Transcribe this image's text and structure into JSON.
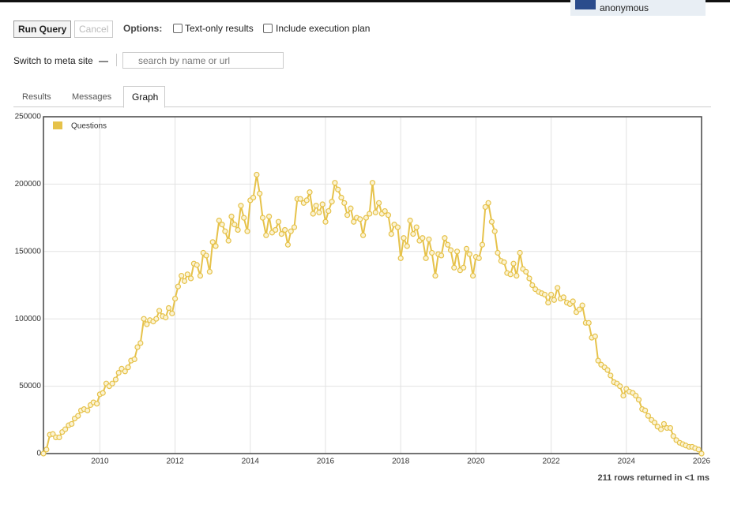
{
  "page": {
    "user": "anonymous",
    "run_button": "Run Query",
    "cancel_button": "Cancel",
    "options_label": "Options:",
    "option_text_only": "Text-only results",
    "option_exec_plan": "Include execution plan",
    "switch_meta": "Switch to meta site",
    "search_placeholder": "search by name or url",
    "tabs": [
      "Results",
      "Messages",
      "Graph"
    ],
    "status": "211 rows returned in <1 ms"
  },
  "chart_data": {
    "type": "line",
    "color": "#e6c24a",
    "grid": true,
    "legend": "top-left",
    "xlim": [
      2008.5,
      2026
    ],
    "xticks": [
      2010,
      2012,
      2014,
      2016,
      2018,
      2020,
      2022,
      2024,
      2026
    ],
    "ylim": [
      0,
      250000
    ],
    "yticks": [
      0,
      50000,
      100000,
      150000,
      200000,
      250000
    ],
    "x": [
      2008.5,
      2008.58,
      2008.67,
      2008.75,
      2008.83,
      2008.92,
      2009.0,
      2009.08,
      2009.17,
      2009.25,
      2009.33,
      2009.42,
      2009.5,
      2009.58,
      2009.67,
      2009.75,
      2009.83,
      2009.92,
      2010.0,
      2010.08,
      2010.17,
      2010.25,
      2010.33,
      2010.42,
      2010.5,
      2010.58,
      2010.67,
      2010.75,
      2010.83,
      2010.92,
      2011.0,
      2011.08,
      2011.17,
      2011.25,
      2011.33,
      2011.42,
      2011.5,
      2011.58,
      2011.67,
      2011.75,
      2011.83,
      2011.92,
      2012.0,
      2012.08,
      2012.17,
      2012.25,
      2012.33,
      2012.42,
      2012.5,
      2012.58,
      2012.67,
      2012.75,
      2012.83,
      2012.92,
      2013.0,
      2013.08,
      2013.17,
      2013.25,
      2013.33,
      2013.42,
      2013.5,
      2013.58,
      2013.67,
      2013.75,
      2013.83,
      2013.92,
      2014.0,
      2014.08,
      2014.17,
      2014.25,
      2014.33,
      2014.42,
      2014.5,
      2014.58,
      2014.67,
      2014.75,
      2014.83,
      2014.92,
      2015.0,
      2015.08,
      2015.17,
      2015.25,
      2015.33,
      2015.42,
      2015.5,
      2015.58,
      2015.67,
      2015.75,
      2015.83,
      2015.92,
      2016.0,
      2016.08,
      2016.17,
      2016.25,
      2016.33,
      2016.42,
      2016.5,
      2016.58,
      2016.67,
      2016.75,
      2016.83,
      2016.92,
      2017.0,
      2017.08,
      2017.17,
      2017.25,
      2017.33,
      2017.42,
      2017.5,
      2017.58,
      2017.67,
      2017.75,
      2017.83,
      2017.92,
      2018.0,
      2018.08,
      2018.17,
      2018.25,
      2018.33,
      2018.42,
      2018.5,
      2018.58,
      2018.67,
      2018.75,
      2018.83,
      2018.92,
      2019.0,
      2019.08,
      2019.17,
      2019.25,
      2019.33,
      2019.42,
      2019.5,
      2019.58,
      2019.67,
      2019.75,
      2019.83,
      2019.92,
      2020.0,
      2020.08,
      2020.17,
      2020.25,
      2020.33,
      2020.42,
      2020.5,
      2020.58,
      2020.67,
      2020.75,
      2020.83,
      2020.92,
      2021.0,
      2021.08,
      2021.17,
      2021.25,
      2021.33,
      2021.42,
      2021.5,
      2021.58,
      2021.67,
      2021.75,
      2021.83,
      2021.92,
      2022.0,
      2022.08,
      2022.17,
      2022.25,
      2022.33,
      2022.42,
      2022.5,
      2022.58,
      2022.67,
      2022.75,
      2022.83,
      2022.92,
      2023.0,
      2023.08,
      2023.17,
      2023.25,
      2023.33,
      2023.42,
      2023.5,
      2023.58,
      2023.67,
      2023.75,
      2023.83,
      2023.92,
      2024.0,
      2024.08,
      2024.17,
      2024.25,
      2024.33,
      2024.42,
      2024.5,
      2024.58,
      2024.67,
      2024.75,
      2024.83,
      2024.92,
      2025.0,
      2025.08,
      2025.17,
      2025.25,
      2025.33,
      2025.42,
      2025.5,
      2025.58,
      2025.67,
      2025.75,
      2025.83,
      2025.92,
      2026.0
    ],
    "series": [
      {
        "name": "Questions",
        "color": "#e6c24a",
        "values": [
          0,
          3000,
          14000,
          14500,
          12000,
          12000,
          16000,
          18000,
          21000,
          22000,
          26000,
          28000,
          32000,
          33000,
          32000,
          36000,
          38000,
          37000,
          44000,
          45000,
          52000,
          50000,
          52000,
          55000,
          60000,
          63000,
          61000,
          64000,
          69000,
          70000,
          79000,
          82000,
          100000,
          96000,
          99000,
          98000,
          100000,
          106000,
          102000,
          101000,
          108000,
          104000,
          115000,
          124000,
          132000,
          128000,
          133000,
          130000,
          141000,
          140000,
          132000,
          149000,
          147000,
          135000,
          157000,
          154000,
          173000,
          170000,
          165000,
          158000,
          176000,
          170000,
          166000,
          184000,
          175000,
          165000,
          188000,
          190000,
          207000,
          193000,
          175000,
          162000,
          176000,
          164000,
          166000,
          172000,
          163000,
          166000,
          155000,
          165000,
          168000,
          189000,
          189000,
          186000,
          188000,
          194000,
          178000,
          184000,
          179000,
          185000,
          172000,
          180000,
          187000,
          201000,
          196000,
          190000,
          186000,
          177000,
          182000,
          172000,
          175000,
          174000,
          162000,
          175000,
          178000,
          201000,
          179000,
          186000,
          178000,
          180000,
          177000,
          163000,
          170000,
          168000,
          145000,
          160000,
          154000,
          173000,
          163000,
          168000,
          158000,
          160000,
          145000,
          159000,
          149000,
          132000,
          148000,
          147000,
          160000,
          155000,
          151000,
          138000,
          150000,
          136000,
          138000,
          152000,
          148000,
          132000,
          146000,
          145000,
          155000,
          183000,
          186000,
          172000,
          165000,
          149000,
          143000,
          142000,
          134000,
          133000,
          141000,
          132000,
          149000,
          137000,
          135000,
          130000,
          125000,
          122000,
          120000,
          119000,
          118000,
          112000,
          118000,
          114000,
          123000,
          115000,
          116000,
          112000,
          111000,
          113000,
          105000,
          107000,
          110000,
          97000,
          97000,
          86000,
          87000,
          69000,
          66000,
          64000,
          62000,
          58000,
          53000,
          52000,
          50000,
          43000,
          48000,
          46000,
          45000,
          43000,
          40000,
          33000,
          32000,
          28000,
          25000,
          23000,
          20000,
          18000,
          22000,
          19000,
          19000,
          13000,
          10000,
          8000,
          7000,
          6000,
          5000,
          5000,
          4000,
          3000,
          0
        ]
      }
    ]
  }
}
